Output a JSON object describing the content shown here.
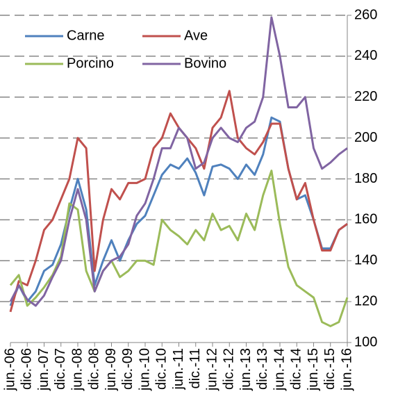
{
  "chart_data": {
    "type": "line",
    "categories": [
      "jun.-06",
      null,
      "dic.-06",
      null,
      "jun.-07",
      null,
      "dic.-07",
      null,
      "jun.-08",
      null,
      "dic.-08",
      null,
      "jun.-09",
      null,
      "dic.-09",
      null,
      "jun.-10",
      null,
      "dic.-10",
      null,
      "jun.-11",
      null,
      "dic.-11",
      null,
      "jun.-12",
      null,
      "dic.-12",
      null,
      "jun.-13",
      null,
      "dic.-13",
      null,
      "jun.-14",
      null,
      "dic.-14",
      null,
      "jun.-15",
      null,
      "dic.-15",
      null,
      "jun.-16"
    ],
    "series": [
      {
        "name": "Carne",
        "color": "#4f81bd",
        "values": [
          118,
          128,
          120,
          125,
          135,
          138,
          148,
          165,
          180,
          165,
          128,
          140,
          150,
          140,
          150,
          158,
          162,
          172,
          182,
          187,
          185,
          190,
          183,
          172,
          186,
          187,
          185,
          180,
          187,
          182,
          192,
          210,
          208,
          185,
          170,
          172,
          160,
          146,
          146,
          155,
          158
        ]
      },
      {
        "name": "Ave",
        "color": "#c0504d",
        "values": [
          115,
          130,
          128,
          140,
          155,
          160,
          170,
          180,
          200,
          195,
          135,
          160,
          175,
          170,
          178,
          178,
          180,
          195,
          200,
          212,
          205,
          200,
          195,
          185,
          205,
          210,
          223,
          200,
          195,
          192,
          198,
          207,
          207,
          185,
          170,
          178,
          160,
          145,
          145,
          155,
          158
        ]
      },
      {
        "name": "Porcino",
        "color": "#9bbb59",
        "values": [
          128,
          133,
          118,
          122,
          127,
          133,
          142,
          168,
          165,
          135,
          125,
          135,
          140,
          132,
          135,
          140,
          140,
          138,
          160,
          155,
          152,
          148,
          155,
          150,
          163,
          155,
          157,
          150,
          163,
          155,
          172,
          184,
          158,
          137,
          128,
          125,
          122,
          110,
          108,
          110,
          122
        ]
      },
      {
        "name": "Bovino",
        "color": "#8064a2",
        "values": [
          120,
          128,
          121,
          118,
          123,
          132,
          140,
          160,
          175,
          160,
          125,
          135,
          140,
          142,
          148,
          162,
          168,
          180,
          195,
          195,
          205,
          200,
          185,
          188,
          200,
          205,
          200,
          198,
          205,
          208,
          220,
          259,
          240,
          215,
          215,
          220,
          195,
          185,
          188,
          192,
          195
        ]
      }
    ],
    "ylim": [
      100,
      260
    ],
    "yticks": [
      100,
      120,
      140,
      160,
      180,
      200,
      220,
      240,
      260
    ],
    "grid": true
  }
}
